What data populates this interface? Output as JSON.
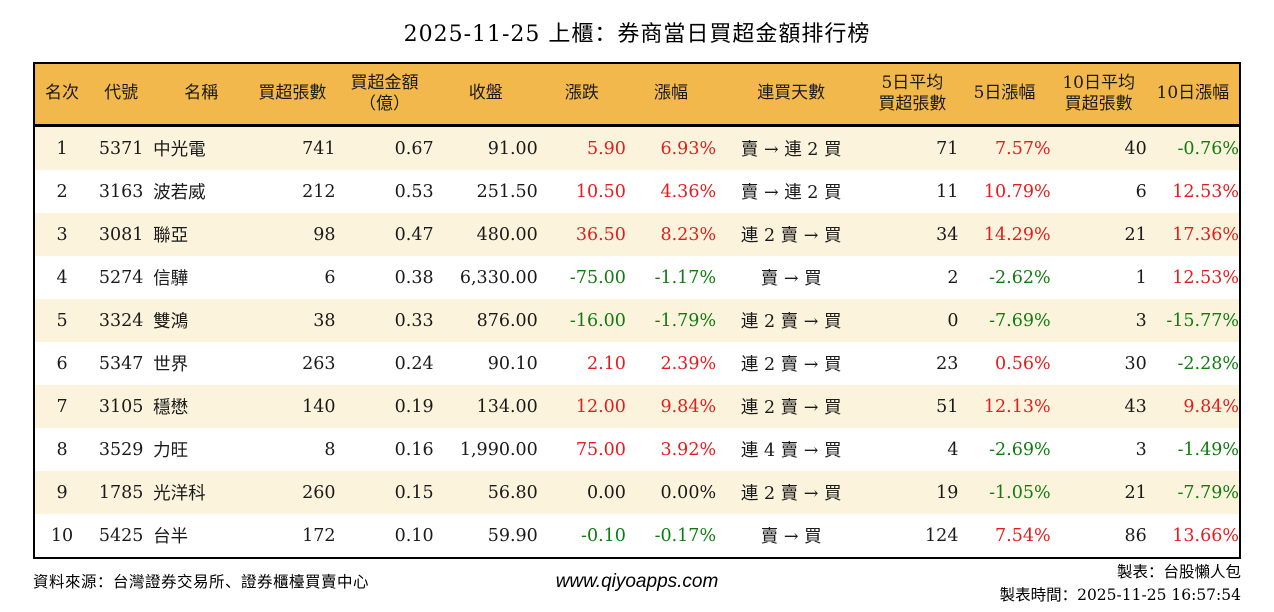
{
  "page": {
    "title": "2025-11-25 上櫃：券商當日買超金額排行榜",
    "footer": {
      "source": "資料來源：台灣證券交易所、證券櫃檯買賣中心",
      "website": "www.qiyoapps.com",
      "maker": "製表：台股懶人包",
      "generated_at": "製表時間：2025-11-25 16:57:54"
    }
  },
  "colors": {
    "header_bg": "#F2B84C",
    "row_alt_bg": "#FCF3DC",
    "row_bg": "#FFFFFF",
    "up": "#DF1F1F",
    "down": "#107C10",
    "flat": "#1A1A1A",
    "border": "#000000"
  },
  "chart_data": {
    "type": "table",
    "title": "2025-11-25 上櫃：券商當日買超金額排行榜",
    "columns": [
      {
        "key": "rank",
        "label": "名次",
        "align": "center",
        "colored": false,
        "cls": "c-rank"
      },
      {
        "key": "code",
        "label": "代號",
        "align": "center",
        "colored": false,
        "cls": "c-code"
      },
      {
        "key": "name",
        "label": "名稱",
        "align": "left",
        "colored": false,
        "cls": "c-name"
      },
      {
        "key": "net_buy_volume",
        "label": "買超張數",
        "align": "right",
        "colored": false,
        "cls": "c-vol"
      },
      {
        "key": "net_buy_amount",
        "label": "買超金額\n（億）",
        "align": "right",
        "colored": false,
        "cls": "c-amt"
      },
      {
        "key": "close",
        "label": "收盤",
        "align": "right",
        "colored": false,
        "cls": "c-close"
      },
      {
        "key": "change",
        "label": "漲跌",
        "align": "right",
        "colored": true,
        "cls": "c-chg"
      },
      {
        "key": "change_pct",
        "label": "漲幅",
        "align": "right",
        "colored": true,
        "cls": "c-pct"
      },
      {
        "key": "streak",
        "label": "連買天數",
        "align": "center",
        "colored": false,
        "cls": "c-streak"
      },
      {
        "key": "avg5_volume",
        "label": "5日平均\n買超張數",
        "align": "right",
        "colored": false,
        "cls": "c-avg5"
      },
      {
        "key": "pct5",
        "label": "5日漲幅",
        "align": "right",
        "colored": true,
        "cls": "c-pct5"
      },
      {
        "key": "avg10_volume",
        "label": "10日平均\n買超張數",
        "align": "right",
        "colored": false,
        "cls": "c-avg10"
      },
      {
        "key": "pct10",
        "label": "10日漲幅",
        "align": "right",
        "colored": true,
        "cls": "c-pct10"
      }
    ],
    "rows": [
      {
        "rank": "1",
        "code": "5371",
        "name": "中光電",
        "net_buy_volume": "741",
        "net_buy_amount": "0.67",
        "close": "91.00",
        "change": "5.90",
        "change_pct": "6.93%",
        "streak": "賣 → 連 2 買",
        "avg5_volume": "71",
        "pct5": "7.57%",
        "avg10_volume": "40",
        "pct10": "-0.76%"
      },
      {
        "rank": "2",
        "code": "3163",
        "name": "波若威",
        "net_buy_volume": "212",
        "net_buy_amount": "0.53",
        "close": "251.50",
        "change": "10.50",
        "change_pct": "4.36%",
        "streak": "賣 → 連 2 買",
        "avg5_volume": "11",
        "pct5": "10.79%",
        "avg10_volume": "6",
        "pct10": "12.53%"
      },
      {
        "rank": "3",
        "code": "3081",
        "name": "聯亞",
        "net_buy_volume": "98",
        "net_buy_amount": "0.47",
        "close": "480.00",
        "change": "36.50",
        "change_pct": "8.23%",
        "streak": "連 2 賣 → 買",
        "avg5_volume": "34",
        "pct5": "14.29%",
        "avg10_volume": "21",
        "pct10": "17.36%"
      },
      {
        "rank": "4",
        "code": "5274",
        "name": "信驊",
        "net_buy_volume": "6",
        "net_buy_amount": "0.38",
        "close": "6,330.00",
        "change": "-75.00",
        "change_pct": "-1.17%",
        "streak": "賣 → 買",
        "avg5_volume": "2",
        "pct5": "-2.62%",
        "avg10_volume": "1",
        "pct10": "12.53%"
      },
      {
        "rank": "5",
        "code": "3324",
        "name": "雙鴻",
        "net_buy_volume": "38",
        "net_buy_amount": "0.33",
        "close": "876.00",
        "change": "-16.00",
        "change_pct": "-1.79%",
        "streak": "連 2 賣 → 買",
        "avg5_volume": "0",
        "pct5": "-7.69%",
        "avg10_volume": "3",
        "pct10": "-15.77%"
      },
      {
        "rank": "6",
        "code": "5347",
        "name": "世界",
        "net_buy_volume": "263",
        "net_buy_amount": "0.24",
        "close": "90.10",
        "change": "2.10",
        "change_pct": "2.39%",
        "streak": "連 2 賣 → 買",
        "avg5_volume": "23",
        "pct5": "0.56%",
        "avg10_volume": "30",
        "pct10": "-2.28%"
      },
      {
        "rank": "7",
        "code": "3105",
        "name": "穩懋",
        "net_buy_volume": "140",
        "net_buy_amount": "0.19",
        "close": "134.00",
        "change": "12.00",
        "change_pct": "9.84%",
        "streak": "連 2 賣 → 買",
        "avg5_volume": "51",
        "pct5": "12.13%",
        "avg10_volume": "43",
        "pct10": "9.84%"
      },
      {
        "rank": "8",
        "code": "3529",
        "name": "力旺",
        "net_buy_volume": "8",
        "net_buy_amount": "0.16",
        "close": "1,990.00",
        "change": "75.00",
        "change_pct": "3.92%",
        "streak": "連 4 賣 → 買",
        "avg5_volume": "4",
        "pct5": "-2.69%",
        "avg10_volume": "3",
        "pct10": "-1.49%"
      },
      {
        "rank": "9",
        "code": "1785",
        "name": "光洋科",
        "net_buy_volume": "260",
        "net_buy_amount": "0.15",
        "close": "56.80",
        "change": "0.00",
        "change_pct": "0.00%",
        "streak": "連 2 賣 → 買",
        "avg5_volume": "19",
        "pct5": "-1.05%",
        "avg10_volume": "21",
        "pct10": "-7.79%"
      },
      {
        "rank": "10",
        "code": "5425",
        "name": "台半",
        "net_buy_volume": "172",
        "net_buy_amount": "0.10",
        "close": "59.90",
        "change": "-0.10",
        "change_pct": "-0.17%",
        "streak": "賣 → 買",
        "avg5_volume": "124",
        "pct5": "7.54%",
        "avg10_volume": "86",
        "pct10": "13.66%"
      }
    ]
  }
}
